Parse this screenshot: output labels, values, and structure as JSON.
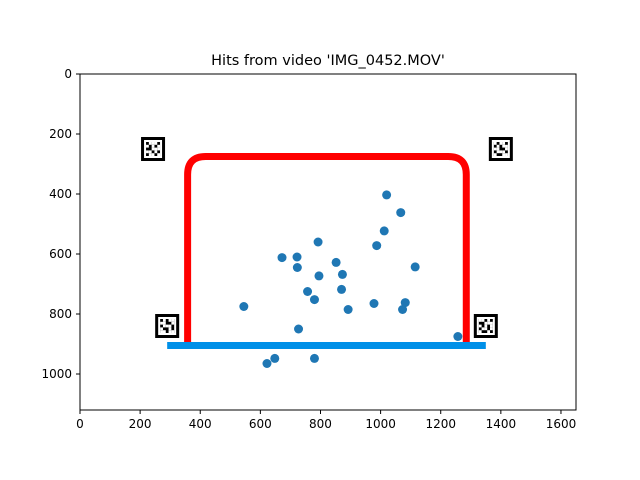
{
  "chart_data": {
    "type": "scatter",
    "title": "Hits from video 'IMG_0452.MOV'",
    "xlabel": "",
    "ylabel": "",
    "xlim": [
      0,
      1650
    ],
    "ylim": [
      1120,
      0
    ],
    "y_inverted": true,
    "grid": false,
    "x_ticks": [
      0,
      200,
      400,
      600,
      800,
      1000,
      1200,
      1400,
      1600
    ],
    "y_ticks": [
      0,
      200,
      400,
      600,
      800,
      1000
    ],
    "points_color": "#1f77b4",
    "points": [
      {
        "x": 1020,
        "y": 403
      },
      {
        "x": 1067,
        "y": 462
      },
      {
        "x": 1012,
        "y": 523
      },
      {
        "x": 792,
        "y": 560
      },
      {
        "x": 987,
        "y": 572
      },
      {
        "x": 672,
        "y": 612
      },
      {
        "x": 722,
        "y": 610
      },
      {
        "x": 723,
        "y": 645
      },
      {
        "x": 852,
        "y": 628
      },
      {
        "x": 1115,
        "y": 643
      },
      {
        "x": 795,
        "y": 673
      },
      {
        "x": 873,
        "y": 668
      },
      {
        "x": 870,
        "y": 718
      },
      {
        "x": 757,
        "y": 725
      },
      {
        "x": 780,
        "y": 752
      },
      {
        "x": 545,
        "y": 775
      },
      {
        "x": 978,
        "y": 765
      },
      {
        "x": 1082,
        "y": 762
      },
      {
        "x": 892,
        "y": 785
      },
      {
        "x": 1073,
        "y": 785
      },
      {
        "x": 727,
        "y": 850
      },
      {
        "x": 1257,
        "y": 875
      },
      {
        "x": 648,
        "y": 948
      },
      {
        "x": 622,
        "y": 965
      },
      {
        "x": 780,
        "y": 948
      }
    ],
    "goal_frame": {
      "color": "#ff0000",
      "left_x": 358,
      "right_x": 1285,
      "top_y": 275,
      "bottom_y": 895
    },
    "goal_line": {
      "color": "#0090e8",
      "x_start": 290,
      "x_end": 1350,
      "y": 905
    },
    "markers": [
      {
        "name": "top-left-marker",
        "x": 243,
        "y": 250
      },
      {
        "name": "top-right-marker",
        "x": 1400,
        "y": 250
      },
      {
        "name": "bottom-left-marker",
        "x": 290,
        "y": 840
      },
      {
        "name": "bottom-right-marker",
        "x": 1350,
        "y": 840
      }
    ]
  }
}
